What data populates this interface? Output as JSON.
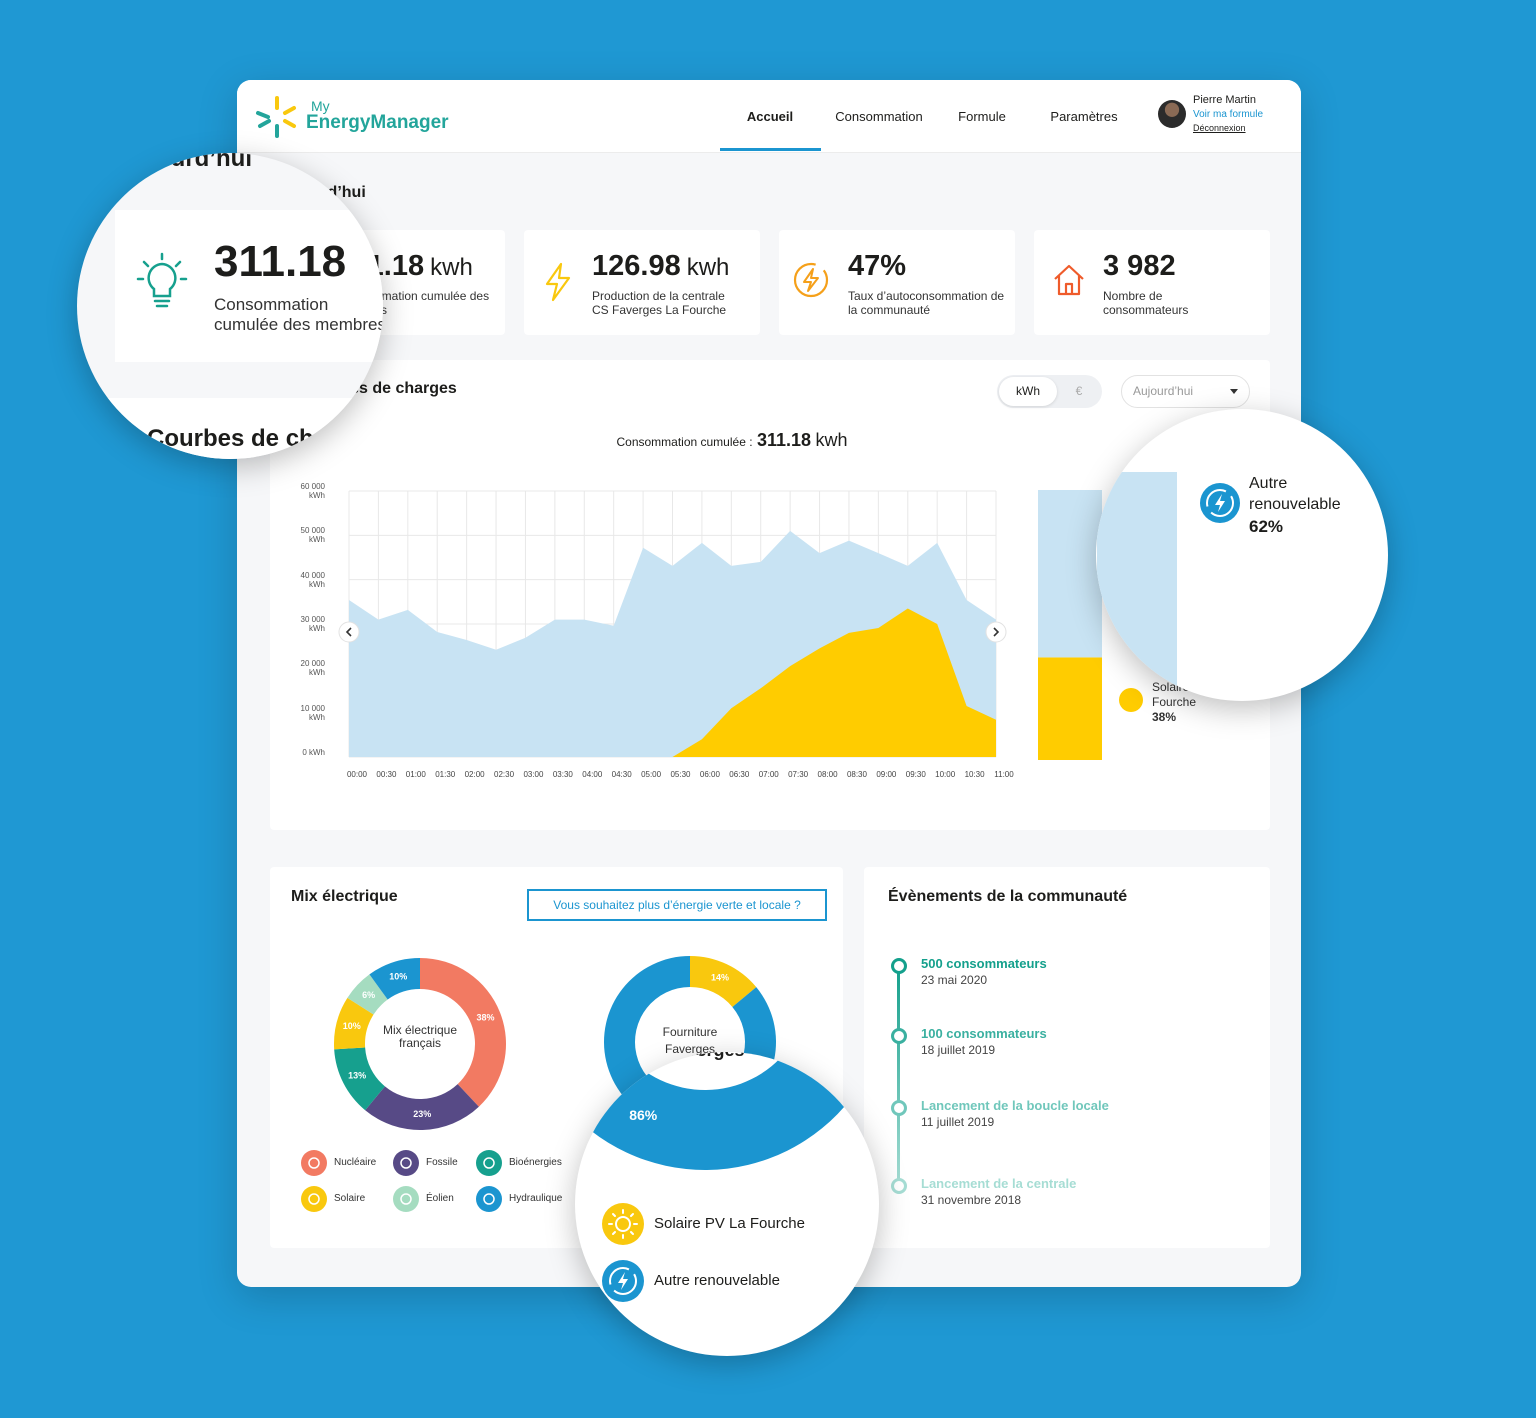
{
  "header": {
    "logo_small": "My",
    "logo_brand": "Energy",
    "logo_product": "Manager",
    "nav": [
      "Accueil",
      "Consommation",
      "Formule",
      "Paramètres"
    ],
    "user_name": "Pierre Martin",
    "user_link": "Voir ma formule",
    "logout": "Déconnexion"
  },
  "today": {
    "title": "Aujourd’hui",
    "kpis": [
      {
        "value": "311.18",
        "unit": "kwh",
        "label": "Consommation cumulée des membres"
      },
      {
        "value": "126.98",
        "unit": "kwh",
        "label": "Production de la centrale CS Faverges La Fourche"
      },
      {
        "value": "47%",
        "label": "Taux d’autoconsommation de la communauté"
      },
      {
        "value": "3 982",
        "label": "Nombre de consommateurs"
      }
    ]
  },
  "controls": {
    "units": [
      "kWh",
      "€"
    ],
    "period": "Aujourd’hui"
  },
  "summary": {
    "label": "Consommation cumulée :",
    "value": "311.18",
    "unit": "kwh"
  },
  "cta": "Vous souhaitez plus d’énergie verte et locale ?",
  "events": {
    "title": "Évènements de la communauté",
    "items": [
      {
        "title": "500 consommateurs",
        "date": "23 mai 2020"
      },
      {
        "title": "100 consommateurs",
        "date": "18 juillet 2019"
      },
      {
        "title": "Lancement de la boucle locale",
        "date": "11 juillet 2019"
      },
      {
        "title": "Lancement de la centrale",
        "date": "31 novembre 2018"
      }
    ]
  },
  "chart_data": [
    {
      "type": "area",
      "title": "Courbes de charges",
      "categories": [
        "00:00",
        "00:30",
        "01:00",
        "01:30",
        "02:00",
        "02:30",
        "03:00",
        "03:30",
        "04:00",
        "04:30",
        "05:00",
        "05:30",
        "06:00",
        "06:30",
        "07:00",
        "07:30",
        "08:00",
        "08:30",
        "09:00",
        "09:30",
        "10:00",
        "10:30",
        "11:00"
      ],
      "series": [
        {
          "color": "#c8e3f3",
          "values": [
            35400,
            31000,
            33200,
            28200,
            26400,
            24200,
            26900,
            31000,
            31000,
            29600,
            47200,
            43100,
            48300,
            43100,
            44000,
            51000,
            46000,
            48800,
            46000,
            43100,
            48300,
            35400,
            31000
          ]
        },
        {
          "color": "#ffcc00",
          "values": [
            0,
            0,
            0,
            0,
            0,
            0,
            0,
            0,
            0,
            0,
            0,
            0,
            4000,
            11000,
            15500,
            20500,
            24500,
            28000,
            29100,
            33500,
            30000,
            11500,
            8400
          ]
        }
      ],
      "ylim": [
        0,
        60000
      ],
      "yticks": [
        {
          "value": 0,
          "label": "0 kWh"
        },
        {
          "value": 10000,
          "label": "10 000 kWh"
        },
        {
          "value": 20000,
          "label": "20 000 kWh"
        },
        {
          "value": 30000,
          "label": "30 000 kWh"
        },
        {
          "value": 40000,
          "label": "40 000 kWh"
        },
        {
          "value": 50000,
          "label": "50 000 kWh"
        },
        {
          "value": 60000,
          "label": "60 000 kWh"
        }
      ],
      "grid": true
    },
    {
      "type": "stacked_bar",
      "series": [
        {
          "name": "Autre renouvelable",
          "color": "#c8e3f3",
          "values": [
            62
          ],
          "value_labels": [
            "62%"
          ]
        },
        {
          "name": "Solaire PV La Fourche",
          "color": "#ffcc00",
          "values": [
            38
          ],
          "value_labels": [
            "38%"
          ]
        }
      ]
    },
    {
      "type": "donut",
      "title": "Mix électrique",
      "center_label": "Mix électrique français",
      "categories": [
        "Nucléaire",
        "Fossile",
        "Bioénergies",
        "Solaire",
        "Éolien",
        "Hydraulique"
      ],
      "values": [
        38,
        23,
        13,
        10,
        6,
        10
      ],
      "value_labels": [
        "38%",
        "23%",
        "13%",
        "10%",
        "6%",
        "10%"
      ],
      "colors": [
        "#f27a62",
        "#574a86",
        "#16a08e",
        "#f9c80e",
        "#a5dcc0",
        "#1b95d0"
      ]
    },
    {
      "type": "donut",
      "center_label": "Fourniture Faverges",
      "categories": [
        "Solaire PV La Fourche",
        "Autre renouvelable"
      ],
      "values": [
        14,
        86
      ],
      "value_labels": [
        "14%",
        "86%"
      ],
      "colors": [
        "#f9c80e",
        "#1b95d0"
      ]
    }
  ]
}
